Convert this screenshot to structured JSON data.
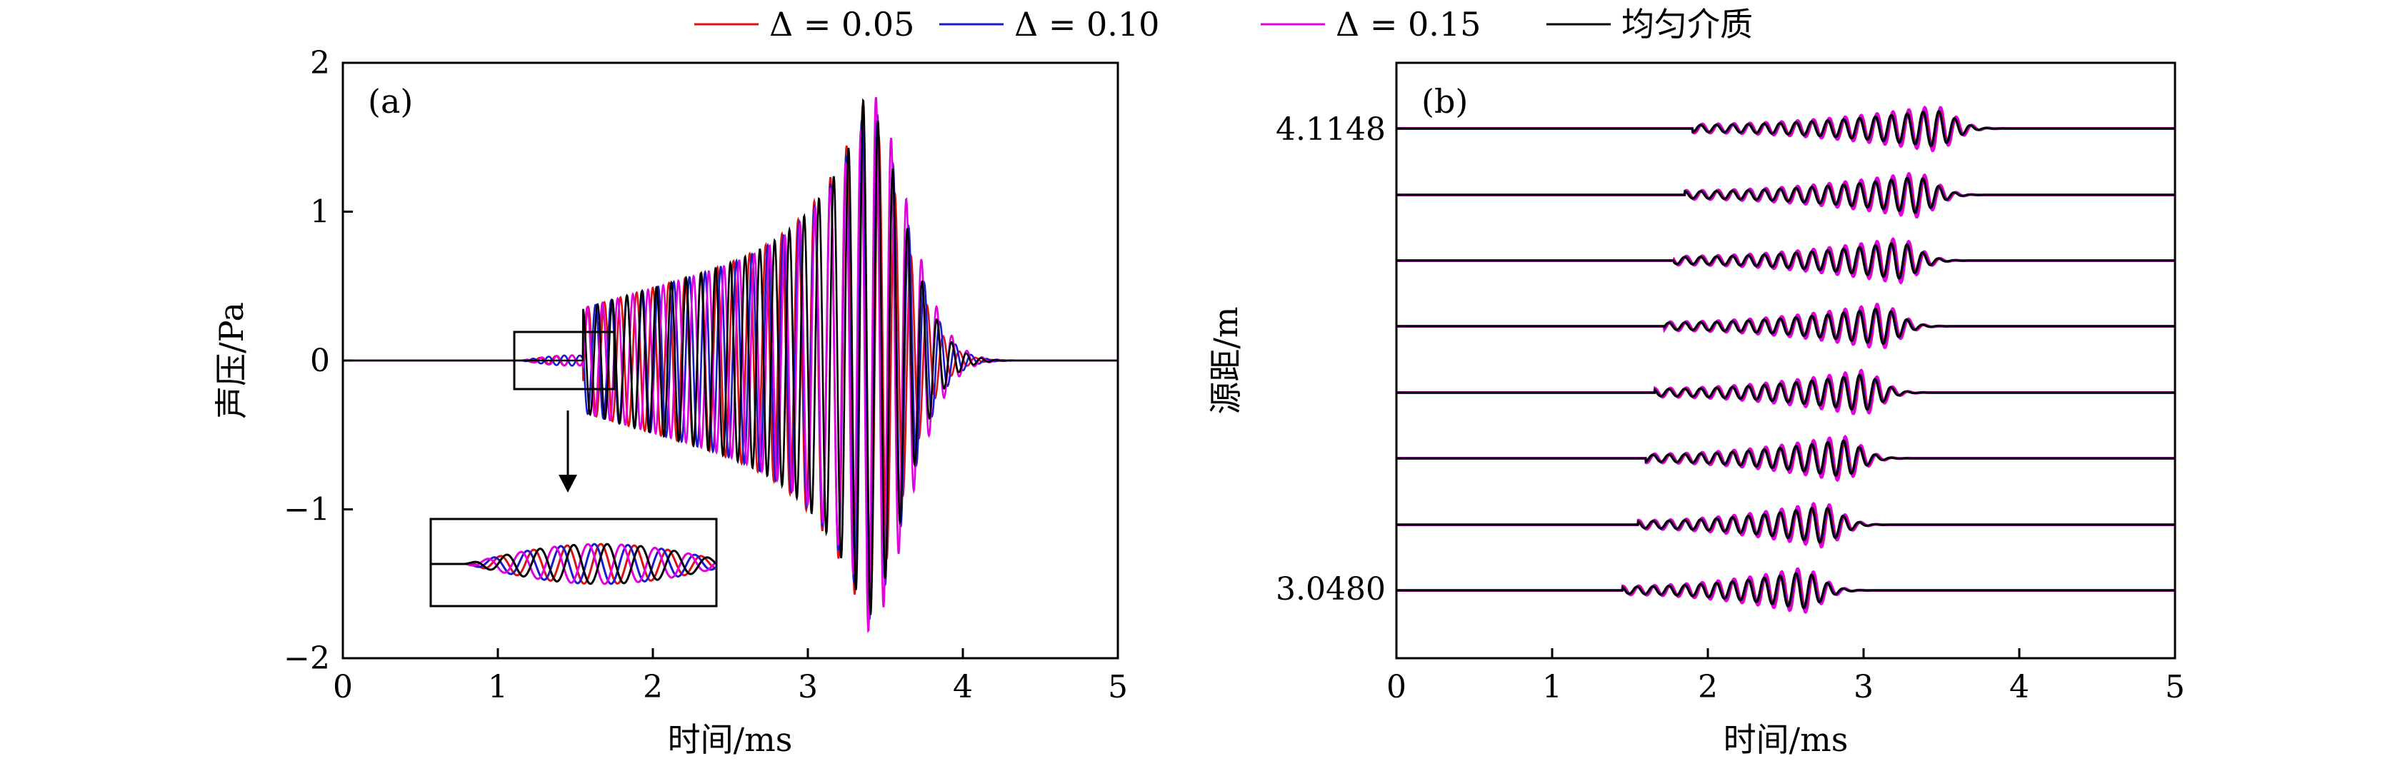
{
  "chart_data": [
    {
      "panel": "(a)",
      "type": "line",
      "xlabel": "时间/ms",
      "ylabel": "声压/Pa",
      "xlim": [
        0,
        5
      ],
      "ylim": [
        -2,
        2
      ],
      "xticks": [
        "0",
        "1",
        "2",
        "3",
        "4",
        "5"
      ],
      "yticks": [
        "2",
        "1",
        "0",
        "−1",
        "−2"
      ],
      "grid": false,
      "inset": "zoom of 1.1–1.75 ms window",
      "series": [
        {
          "name": "Δ = 0.05",
          "color": "#dd1111",
          "t_arrival": 1.15,
          "peak_time": 3.33,
          "peak": 1.72,
          "trough": -1.38
        },
        {
          "name": "Δ = 0.10",
          "color": "#1a1acc",
          "t_arrival": 1.15,
          "peak_time": 3.36,
          "peak": 1.76,
          "trough": -1.78
        },
        {
          "name": "Δ = 0.15",
          "color": "#e000e0",
          "t_arrival": 1.15,
          "peak_time": 3.38,
          "peak": 1.82,
          "trough": -1.76
        },
        {
          "name": "均匀介质",
          "color": "#000000",
          "t_arrival": 1.6,
          "peak_time": 3.35,
          "peak": 1.75,
          "trough": -1.75
        }
      ]
    },
    {
      "panel": "(b)",
      "type": "line",
      "xlabel": "时间/ms",
      "ylabel": "源距/m",
      "xlim": [
        0,
        5
      ],
      "xticks": [
        "0",
        "1",
        "2",
        "3",
        "4",
        "5"
      ],
      "yticks": [
        "4.1148",
        "3.0480"
      ],
      "source_distances": [
        4.1148,
        3.9624,
        3.81,
        3.6576,
        3.5052,
        3.3528,
        3.2004,
        3.048
      ],
      "peak_times": [
        3.45,
        3.33,
        3.22,
        3.1,
        2.98,
        2.85,
        2.72,
        2.6
      ],
      "onset_times": [
        1.9,
        1.85,
        1.78,
        1.72,
        1.66,
        1.6,
        1.55,
        1.45
      ]
    }
  ],
  "legend": [
    {
      "label": "Δ = 0.05",
      "color": "#dd1111"
    },
    {
      "label": "Δ = 0.10",
      "color": "#1a1acc"
    },
    {
      "label": "Δ = 0.15",
      "color": "#e000e0"
    },
    {
      "label": "均匀介质",
      "color": "#000000"
    }
  ]
}
